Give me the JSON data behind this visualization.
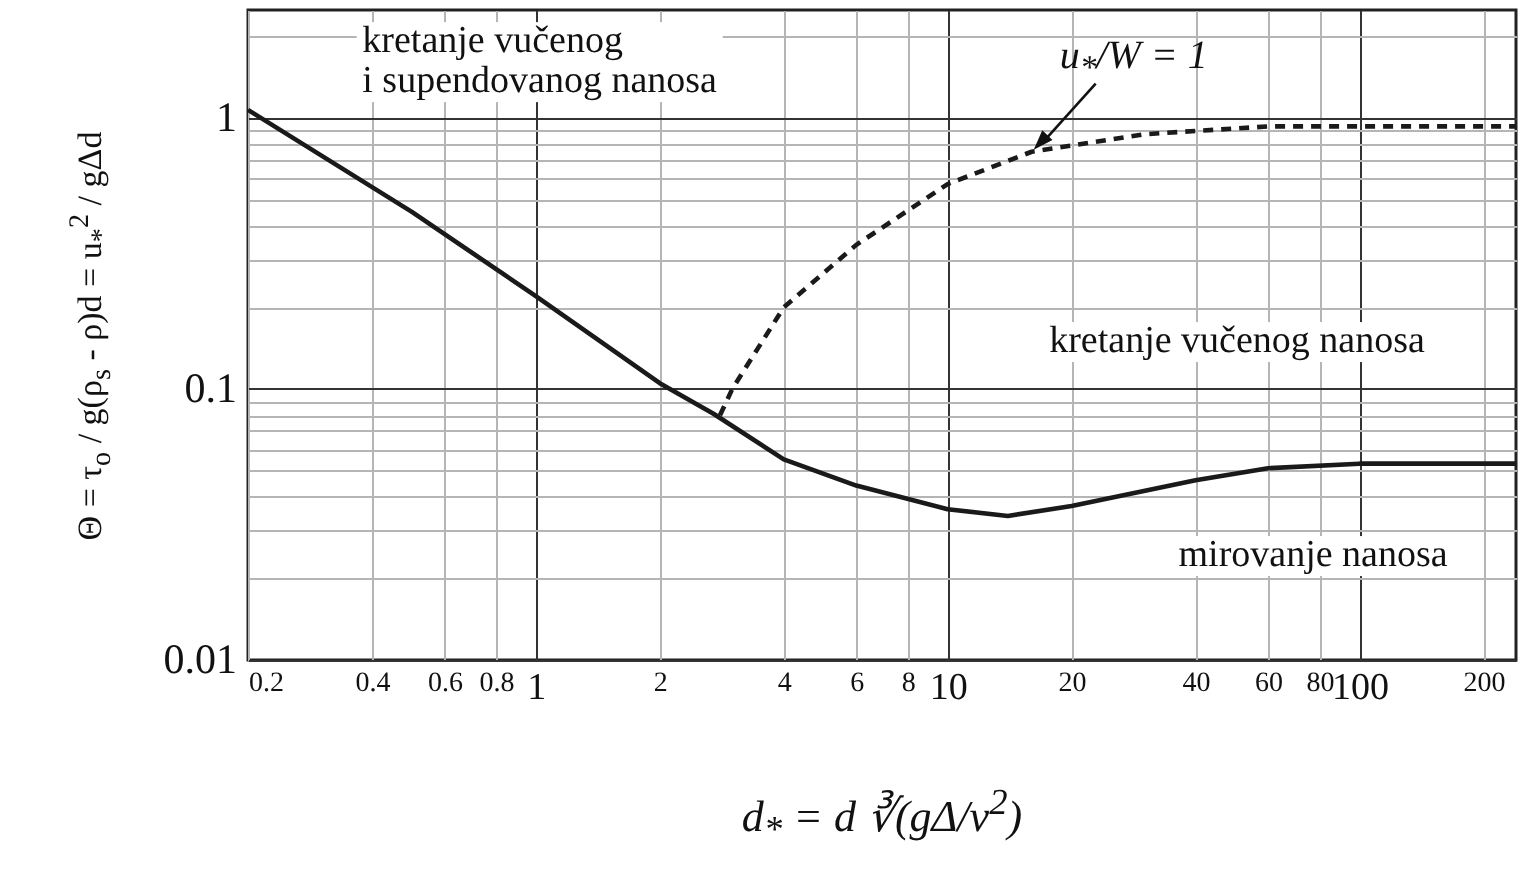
{
  "chart_data": {
    "type": "line",
    "xlabel": "d$_{*}$ = d ∛(gΔ/ν$^{2}$)",
    "ylabel": "Θ = τ$_{o}$ / g(ρ$_{s}$ - ρ)d = u$_{*}$$^{2}$ / gΔd",
    "log": "xy",
    "grid": true,
    "xlim": [
      0.2,
      240
    ],
    "ylim": [
      0.01,
      2.5
    ],
    "xticks": [
      0.2,
      0.4,
      0.6,
      0.8,
      1,
      2,
      4,
      6,
      8,
      10,
      20,
      40,
      60,
      80,
      100,
      200
    ],
    "yticks": [
      0.01,
      {
        "value": 0.02,
        "label": null
      },
      {
        "value": 0.03,
        "label": null
      },
      {
        "value": 0.04,
        "label": null
      },
      {
        "value": 0.05,
        "label": null
      },
      {
        "value": 0.06,
        "label": null
      },
      {
        "value": 0.07,
        "label": null
      },
      {
        "value": 0.08,
        "label": null
      },
      {
        "value": 0.09,
        "label": null
      },
      0.1,
      {
        "value": 0.2,
        "label": null
      },
      {
        "value": 0.3,
        "label": null
      },
      {
        "value": 0.4,
        "label": null
      },
      {
        "value": 0.5,
        "label": null
      },
      {
        "value": 0.6,
        "label": null
      },
      {
        "value": 0.7,
        "label": null
      },
      {
        "value": 0.8,
        "label": null
      },
      {
        "value": 0.9,
        "label": null
      },
      1,
      {
        "value": 2,
        "label": null
      }
    ],
    "series": [
      {
        "color": "#1a1a1a",
        "line_style": "solid",
        "x": [
          0.2,
          0.5,
          1,
          2,
          2.7,
          4,
          6,
          10,
          14,
          20,
          40,
          60,
          100,
          240
        ],
        "values": [
          1.07,
          0.45,
          0.22,
          0.105,
          0.081,
          0.055,
          0.044,
          0.036,
          0.034,
          0.037,
          0.046,
          0.051,
          0.053,
          0.053
        ]
      },
      {
        "color": "#1a1a1a",
        "line_style": "dashed",
        "x": [
          2.8,
          3,
          4,
          6,
          10,
          16,
          30,
          60,
          240
        ],
        "values": [
          0.08,
          0.1,
          0.2,
          0.34,
          0.57,
          0.75,
          0.87,
          0.93,
          0.93
        ]
      }
    ],
    "annotations": [
      "kretanje vučenog\ni supendovanog nanosa",
      "kretanje vučenog nanosa",
      "mirovanje nanosa",
      {
        "text": "u$_{*}$/W = 1",
        "x": 16,
        "y": 0.75
      }
    ]
  }
}
